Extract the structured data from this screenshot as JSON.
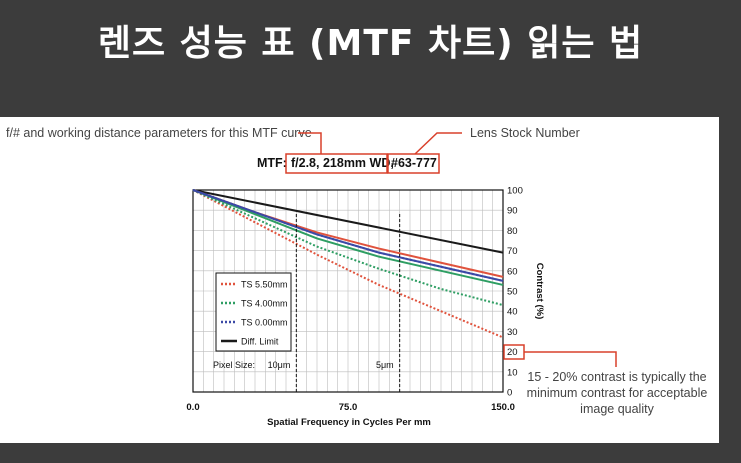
{
  "page": {
    "title": "렌즈 성능 표 (MTF 차트) 읽는 법"
  },
  "annotations": {
    "params_note": "f/# and working distance parameters for this MTF curve",
    "stock_note": "Lens Stock Number",
    "contrast_note": [
      "15 - 20% contrast is typically the",
      "minimum contrast for acceptable",
      "image quality"
    ]
  },
  "chart_data": {
    "type": "line",
    "header": {
      "prefix": "MTF:",
      "params": "f/2.8, 218mm WD,",
      "stock": "#63-777"
    },
    "xlabel": "Spatial Frequency in Cycles Per mm",
    "ylabel": "Contrast (%)",
    "xlim": [
      0,
      150
    ],
    "ylim": [
      0,
      100
    ],
    "x_ticks": [
      "0.0",
      "75.0",
      "150.0"
    ],
    "y_ticks": [
      "0",
      "10",
      "20",
      "30",
      "40",
      "50",
      "60",
      "70",
      "80",
      "90",
      "100"
    ],
    "pixel_size": {
      "label": "Pixel Size:",
      "markers": [
        {
          "label": "10μm",
          "x": 50
        },
        {
          "label": "5μm",
          "x": 100
        }
      ]
    },
    "highlight_tick": "20",
    "series": [
      {
        "name": "Diff. Limit",
        "color": "#1a1a1a",
        "dashed": false,
        "x": [
          0,
          150
        ],
        "y": [
          100,
          69
        ]
      },
      {
        "name": "TS 5.50mm",
        "color": "#e0533d",
        "dashed": false,
        "x": [
          0,
          30,
          60,
          90,
          120,
          150
        ],
        "y": [
          100,
          89,
          79,
          71,
          64,
          57
        ]
      },
      {
        "name": "TS 5.50mm",
        "color": "#e0533d",
        "dashed": true,
        "x": [
          0,
          30,
          60,
          90,
          120,
          150
        ],
        "y": [
          100,
          84,
          68,
          53,
          40,
          27
        ]
      },
      {
        "name": "TS 4.00mm",
        "color": "#2e9e63",
        "dashed": false,
        "x": [
          0,
          30,
          60,
          90,
          120,
          150
        ],
        "y": [
          100,
          88,
          76,
          67,
          60,
          53
        ]
      },
      {
        "name": "TS 4.00mm",
        "color": "#2e9e63",
        "dashed": true,
        "x": [
          0,
          30,
          60,
          90,
          120,
          150
        ],
        "y": [
          100,
          86,
          72,
          61,
          51,
          43
        ]
      },
      {
        "name": "TS 0.00mm",
        "color": "#3b49a6",
        "dashed": false,
        "x": [
          0,
          30,
          60,
          90,
          120,
          150
        ],
        "y": [
          100,
          89,
          78,
          69,
          62,
          55
        ]
      },
      {
        "name": "TS 0.00mm",
        "color": "#3b49a6",
        "dashed": true,
        "x": [
          0,
          30,
          60,
          90,
          120,
          150
        ],
        "y": [
          100,
          89,
          78,
          69,
          62,
          55
        ]
      }
    ],
    "legend": {
      "placement": "bottom-left",
      "entries": [
        {
          "label": "TS 5.50mm",
          "color": "#e0533d",
          "style": "dashed"
        },
        {
          "label": "TS 4.00mm",
          "color": "#2e9e63",
          "style": "dashed"
        },
        {
          "label": "TS 0.00mm",
          "color": "#3b49a6",
          "style": "dashed"
        },
        {
          "label": "Diff. Limit",
          "color": "#1a1a1a",
          "style": "solid"
        }
      ]
    },
    "annotation_color": "#d9402b",
    "grid": true
  }
}
